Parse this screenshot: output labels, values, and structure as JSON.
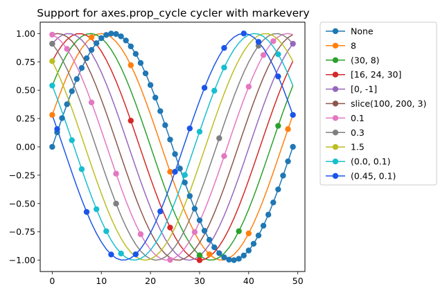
{
  "chart_data": {
    "type": "line",
    "title": "Support for axes.prop_cycle cycler with markevery",
    "xlabel": "",
    "ylabel": "",
    "xlim": [
      -2.45,
      51.45
    ],
    "ylim": [
      -1.1,
      1.1
    ],
    "x_ticks": [
      0,
      10,
      20,
      30,
      40,
      50
    ],
    "x_tick_labels": [
      "0",
      "10",
      "20",
      "30",
      "40",
      "50"
    ],
    "y_ticks": [
      -1.0,
      -0.75,
      -0.5,
      -0.25,
      0.0,
      0.25,
      0.5,
      0.75,
      1.0
    ],
    "y_tick_labels": [
      "−1.00",
      "−0.75",
      "−0.50",
      "−0.25",
      "0.00",
      "0.25",
      "0.50",
      "0.75",
      "1.00"
    ],
    "x": [
      0,
      1,
      2,
      3,
      4,
      5,
      6,
      7,
      8,
      9,
      10,
      11,
      12,
      13,
      14,
      15,
      16,
      17,
      18,
      19,
      20,
      21,
      22,
      23,
      24,
      25,
      26,
      27,
      28,
      29,
      30,
      31,
      32,
      33,
      34,
      35,
      36,
      37,
      38,
      39,
      40,
      41,
      42,
      43,
      44,
      45,
      46,
      47,
      48,
      49
    ],
    "series_note": "Each series i is y = sin(2*pi*x/49 + i*pi/11); markers drawn at the listed marker_indices",
    "series": [
      {
        "name": "None",
        "color": "#1f77b4",
        "phase_index": 0,
        "marker_indices": [
          0,
          1,
          2,
          3,
          4,
          5,
          6,
          7,
          8,
          9,
          10,
          11,
          12,
          13,
          14,
          15,
          16,
          17,
          18,
          19,
          20,
          21,
          22,
          23,
          24,
          25,
          26,
          27,
          28,
          29,
          30,
          31,
          32,
          33,
          34,
          35,
          36,
          37,
          38,
          39,
          40,
          41,
          42,
          43,
          44,
          45,
          46,
          47,
          48,
          49
        ]
      },
      {
        "name": "8",
        "color": "#ff7f0e",
        "phase_index": 1,
        "marker_indices": [
          0,
          8,
          16,
          24,
          32,
          40,
          48
        ]
      },
      {
        "name": "(30, 8)",
        "color": "#2ca02c",
        "phase_index": 2,
        "marker_indices": [
          30,
          38,
          46
        ]
      },
      {
        "name": "[16, 24, 30]",
        "color": "#d62728",
        "phase_index": 3,
        "marker_indices": [
          16,
          24,
          30
        ]
      },
      {
        "name": "[0, -1]",
        "color": "#9467bd",
        "phase_index": 4,
        "marker_indices": [
          0,
          49
        ]
      },
      {
        "name": "slice(100, 200, 3)",
        "color": "#8c564b",
        "phase_index": 5,
        "marker_indices": []
      },
      {
        "name": "0.1",
        "color": "#e377c2",
        "phase_index": 6,
        "marker_indices": [
          0,
          3,
          8,
          13,
          18,
          24,
          29,
          35,
          40,
          43,
          45
        ]
      },
      {
        "name": "0.3",
        "color": "#7f7f7f",
        "phase_index": 7,
        "marker_indices": [
          0,
          13,
          34,
          42
        ]
      },
      {
        "name": "1.5",
        "color": "#bcbd22",
        "phase_index": 8,
        "marker_indices": [
          0
        ]
      },
      {
        "name": "(0.0, 0.1)",
        "color": "#17becf",
        "phase_index": 9,
        "marker_indices": [
          0,
          4,
          6,
          9,
          11,
          14,
          27,
          30,
          33,
          35,
          46
        ]
      },
      {
        "name": "(0.45, 0.1)",
        "color": "#1a55e8",
        "phase_index": 10,
        "marker_indices": [
          1,
          7,
          12,
          17,
          22,
          25,
          28,
          31,
          35,
          39,
          42,
          46,
          49
        ]
      }
    ],
    "legend": "outside-right",
    "grid": false
  }
}
